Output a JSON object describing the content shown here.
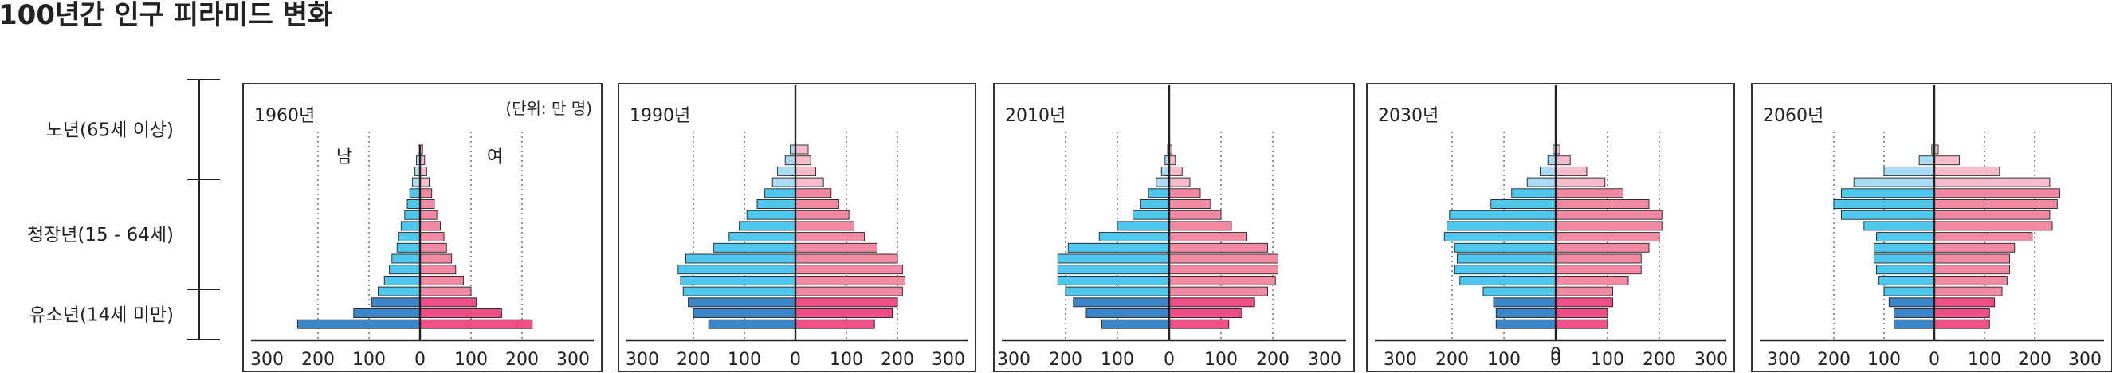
{
  "title": "100년간 인구 피라미드 변화",
  "unit_label": "(단위: 만 명)",
  "gender_labels": {
    "male": "남",
    "female": "여"
  },
  "age_groups": [
    {
      "label": "노년(65세 이상)",
      "from_band": 0,
      "to_band": 3
    },
    {
      "label": "청장년(15 - 64세)",
      "from_band": 4,
      "to_band": 13
    },
    {
      "label": "유소년(14세 미만)",
      "from_band": 14,
      "to_band": 16
    }
  ],
  "colors": {
    "male_young": "#3a86c8",
    "male_working": "#4fc8ef",
    "male_old": "#a9dbf3",
    "female_young": "#ef4e87",
    "female_working": "#f28aa3",
    "female_old": "#f7bccb",
    "outline": "#222222",
    "grid": "#666666",
    "frame": "#333333"
  },
  "chart_data": [
    {
      "type": "population_pyramid",
      "title": "1960년",
      "bands": 17,
      "band_order": "oldest-top",
      "xlim": [
        -300,
        300
      ],
      "x_ticks": [
        -300,
        -200,
        -100,
        0,
        100,
        200,
        300
      ],
      "x_tick_labels": [
        "300",
        "200",
        "100",
        "0",
        "100",
        "200",
        "300"
      ],
      "male": [
        4,
        7,
        10,
        15,
        20,
        25,
        30,
        37,
        42,
        45,
        55,
        60,
        70,
        82,
        95,
        130,
        240
      ],
      "female": [
        5,
        9,
        13,
        18,
        23,
        28,
        33,
        40,
        47,
        52,
        62,
        70,
        85,
        100,
        110,
        160,
        220
      ]
    },
    {
      "type": "population_pyramid",
      "title": "1990년",
      "bands": 17,
      "band_order": "oldest-top",
      "xlim": [
        -300,
        300
      ],
      "x_ticks": [
        -300,
        -200,
        -100,
        0,
        100,
        200,
        300
      ],
      "x_tick_labels": [
        "300",
        "200",
        "100",
        "0",
        "100",
        "200",
        "300"
      ],
      "male": [
        10,
        20,
        35,
        45,
        60,
        75,
        95,
        110,
        130,
        160,
        215,
        230,
        225,
        220,
        210,
        200,
        170
      ],
      "female": [
        25,
        30,
        40,
        55,
        70,
        85,
        105,
        115,
        135,
        160,
        200,
        210,
        215,
        210,
        200,
        190,
        155
      ]
    },
    {
      "type": "population_pyramid",
      "title": "2010년",
      "bands": 17,
      "band_order": "oldest-top",
      "xlim": [
        -300,
        300
      ],
      "x_ticks": [
        -300,
        -200,
        -100,
        0,
        100,
        200,
        300
      ],
      "x_tick_labels": [
        "300",
        "200",
        "100",
        "0",
        "100",
        "200",
        "300"
      ],
      "male": [
        3,
        8,
        15,
        25,
        40,
        55,
        70,
        100,
        135,
        195,
        215,
        215,
        215,
        200,
        185,
        160,
        130
      ],
      "female": [
        5,
        12,
        25,
        40,
        60,
        80,
        100,
        120,
        150,
        190,
        210,
        210,
        205,
        190,
        165,
        140,
        115
      ]
    },
    {
      "type": "population_pyramid",
      "title": "2030년",
      "bands": 17,
      "band_order": "oldest-top",
      "xlim": [
        -300,
        300
      ],
      "x_ticks": [
        -300,
        -200,
        -100,
        0,
        100,
        200,
        300
      ],
      "x_tick_labels": [
        "300",
        "200",
        "100",
        "0",
        "100",
        "200",
        "300"
      ],
      "male": [
        5,
        15,
        30,
        55,
        85,
        125,
        205,
        210,
        215,
        195,
        190,
        195,
        185,
        140,
        120,
        115,
        115
      ],
      "female": [
        8,
        28,
        60,
        95,
        130,
        180,
        205,
        205,
        200,
        180,
        165,
        165,
        140,
        110,
        110,
        100,
        100
      ],
      "x_axis_extra_text": "0"
    },
    {
      "type": "population_pyramid",
      "title": "2060년",
      "bands": 17,
      "band_order": "oldest-top",
      "xlim": [
        -300,
        300
      ],
      "x_ticks": [
        -300,
        -200,
        -100,
        0,
        100,
        200,
        300
      ],
      "x_tick_labels": [
        "300",
        "200",
        "100",
        "0",
        "100",
        "200",
        "300"
      ],
      "male": [
        5,
        30,
        100,
        160,
        185,
        200,
        185,
        140,
        115,
        120,
        120,
        115,
        110,
        100,
        90,
        80,
        80
      ],
      "female": [
        8,
        50,
        130,
        230,
        250,
        245,
        230,
        235,
        195,
        160,
        150,
        150,
        145,
        135,
        120,
        110,
        110
      ]
    }
  ]
}
